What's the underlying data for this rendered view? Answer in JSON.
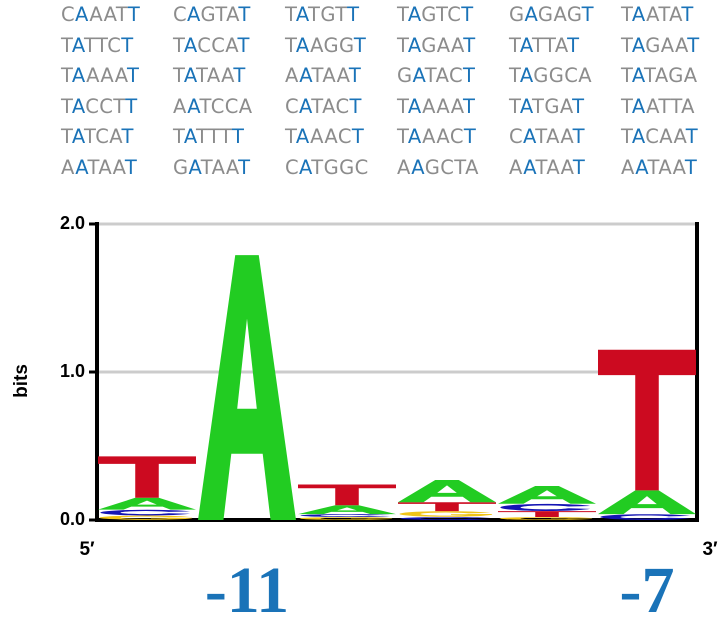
{
  "sequences": [
    [
      "CAAATT",
      "CAGTAT",
      "TATGTT",
      "TAGTCT",
      "GAGAGT",
      "TAATAT"
    ],
    [
      "TATTCT",
      "TACCAT",
      "TAAGGT",
      "TAGAAT",
      "TATTAT",
      "TAGAAT"
    ],
    [
      "TAAAAT",
      "TATAAT",
      "AATAAT",
      "GATACT",
      "TAGGCA",
      "TATAGA"
    ],
    [
      "TACCTT",
      "AATCCA",
      "CATACT",
      "TAAAAT",
      "TATGAT",
      "TAATTA"
    ],
    [
      "TATCAT",
      "TATTTT",
      "TAAACT",
      "TAAACT",
      "CATAAT",
      "TACAAT"
    ],
    [
      "AATAAT",
      "GATAAT",
      "CATGGC",
      "AAGCTA",
      "AATAAT",
      "AATAAT"
    ]
  ],
  "colors": {
    "consensus": "#1a73b8",
    "other": "#8c8c8c",
    "A": "#22cc22",
    "T": "#cc0a20",
    "G": "#f0c418",
    "C": "#1414b4",
    "grid": "#cccccc",
    "axis": "#000000",
    "position_label": "#1a73b8"
  },
  "chart_data": {
    "type": "sequence_logo",
    "title": "",
    "ylabel": "bits",
    "ylim": [
      0,
      2.0
    ],
    "yticks": [
      "0.0",
      "1.0",
      "2.0"
    ],
    "grid": true,
    "x_start_label": "5′",
    "x_end_label": "3′",
    "positions": [
      {
        "stack": [
          [
            "G",
            0.03
          ],
          [
            "C",
            0.04
          ],
          [
            "A",
            0.08
          ],
          [
            "T",
            0.28
          ]
        ]
      },
      {
        "stack": [
          [
            "A",
            1.79
          ]
        ]
      },
      {
        "stack": [
          [
            "G",
            0.02
          ],
          [
            "C",
            0.02
          ],
          [
            "A",
            0.06
          ],
          [
            "T",
            0.14
          ]
        ]
      },
      {
        "stack": [
          [
            "C",
            0.02
          ],
          [
            "G",
            0.04
          ],
          [
            "T",
            0.06
          ],
          [
            "A",
            0.15
          ]
        ]
      },
      {
        "stack": [
          [
            "G",
            0.02
          ],
          [
            "T",
            0.04
          ],
          [
            "C",
            0.05
          ],
          [
            "A",
            0.12
          ]
        ]
      },
      {
        "stack": [
          [
            "C",
            0.04
          ],
          [
            "A",
            0.16
          ],
          [
            "T",
            0.95
          ]
        ]
      }
    ],
    "position_labels": [
      {
        "text": "-11",
        "position_index": 1
      },
      {
        "text": "-7",
        "position_index": 5
      }
    ]
  }
}
